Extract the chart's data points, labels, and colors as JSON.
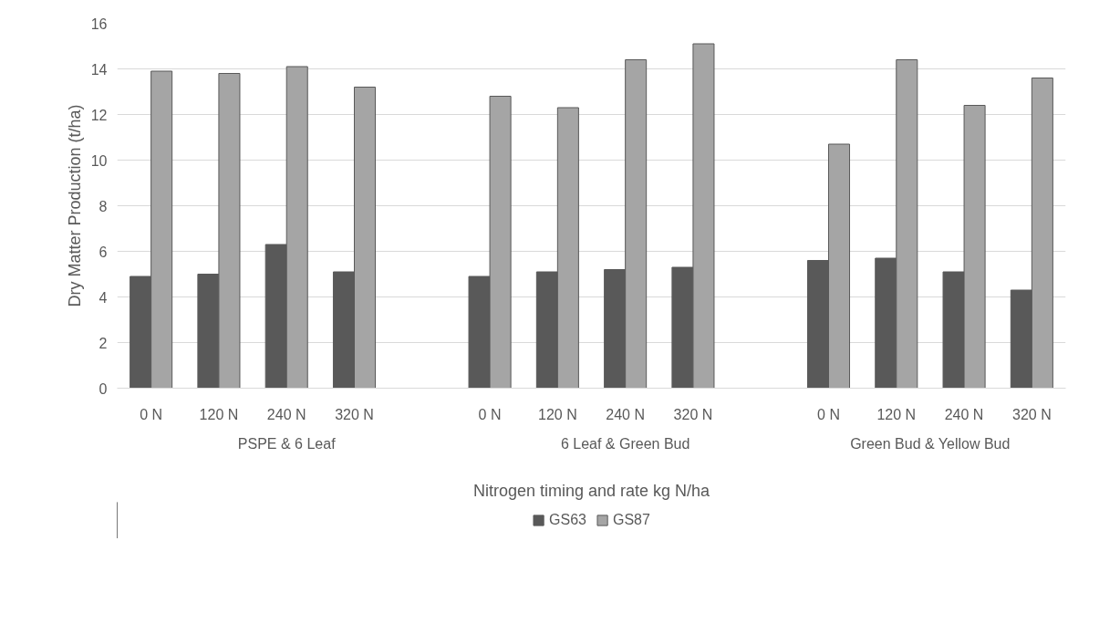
{
  "chart_data": {
    "type": "bar",
    "categories": [
      "0 N",
      "120 N",
      "240 N",
      "320 N",
      null,
      "0 N",
      "120 N",
      "240 N",
      "320 N",
      null,
      "0 N",
      "120 N",
      "240 N",
      "320 N"
    ],
    "series": [
      {
        "name": "GS63",
        "color": "#595959",
        "values": [
          4.9,
          5.0,
          6.3,
          5.1,
          null,
          4.9,
          5.1,
          5.2,
          5.3,
          null,
          5.6,
          5.7,
          5.1,
          4.3
        ]
      },
      {
        "name": "GS87",
        "color": "#a5a5a5",
        "values": [
          13.9,
          13.8,
          14.1,
          13.2,
          null,
          12.8,
          12.3,
          14.4,
          15.1,
          null,
          10.7,
          14.4,
          12.4,
          13.6
        ]
      }
    ],
    "ylim": [
      0,
      16
    ],
    "yticks": [
      0,
      2,
      4,
      6,
      8,
      10,
      12,
      14,
      16
    ],
    "ylabel": "Dry Matter Production (t/ha)",
    "xlabel": "Nitrogen timing and rate kg N/ha",
    "annotations": [
      "PSPE & 6 Leaf",
      "6 Leaf & Green Bud",
      "Green Bud & Yellow Bud"
    ],
    "grid": "y",
    "legend": "bottom"
  }
}
